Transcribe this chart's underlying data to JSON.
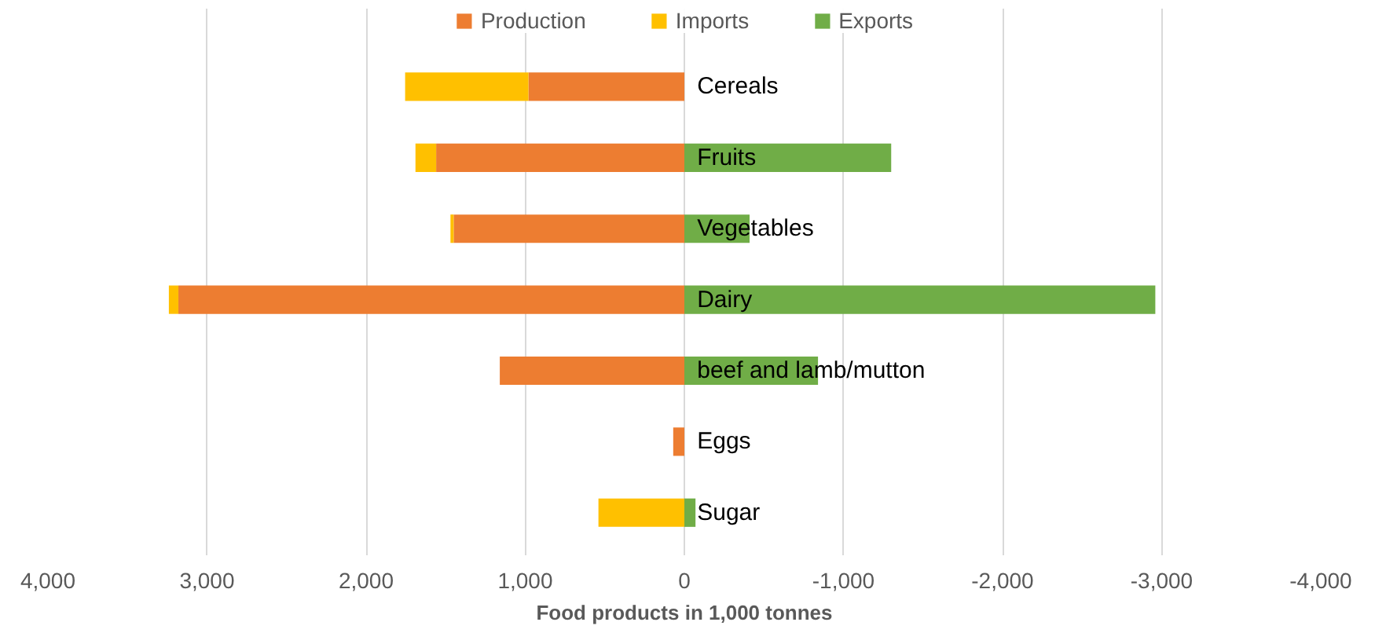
{
  "chart_data": {
    "type": "bar",
    "orientation": "horizontal",
    "stacked": true,
    "xlabel": "Food products in 1,000 tonnes",
    "categories": [
      "Cereals",
      "Fruits",
      "Vegetables",
      "Dairy",
      "beef and lamb/mutton",
      "Eggs",
      "Sugar"
    ],
    "series": [
      {
        "name": "Production",
        "color": "#ed7d31",
        "values": [
          980,
          1560,
          1450,
          3180,
          1160,
          70,
          0
        ]
      },
      {
        "name": "Imports",
        "color": "#ffc000",
        "values": [
          775,
          130,
          20,
          60,
          0,
          0,
          540
        ]
      },
      {
        "name": "Exports",
        "color": "#70ad47",
        "values": [
          0,
          -1300,
          -410,
          -2960,
          -840,
          0,
          -70
        ]
      }
    ],
    "xlim": [
      4000,
      -4000
    ],
    "xticks": [
      {
        "value": 4000,
        "label": "4,000"
      },
      {
        "value": 3000,
        "label": "3,000"
      },
      {
        "value": 2000,
        "label": "2,000"
      },
      {
        "value": 1000,
        "label": "1,000"
      },
      0,
      {
        "value": -1000,
        "label": "-1,000"
      },
      {
        "value": -2000,
        "label": "-2,000"
      },
      {
        "value": -3000,
        "label": "-3,000"
      },
      {
        "value": -4000,
        "label": "-4,000"
      }
    ],
    "grid": "x",
    "legend": "top"
  }
}
